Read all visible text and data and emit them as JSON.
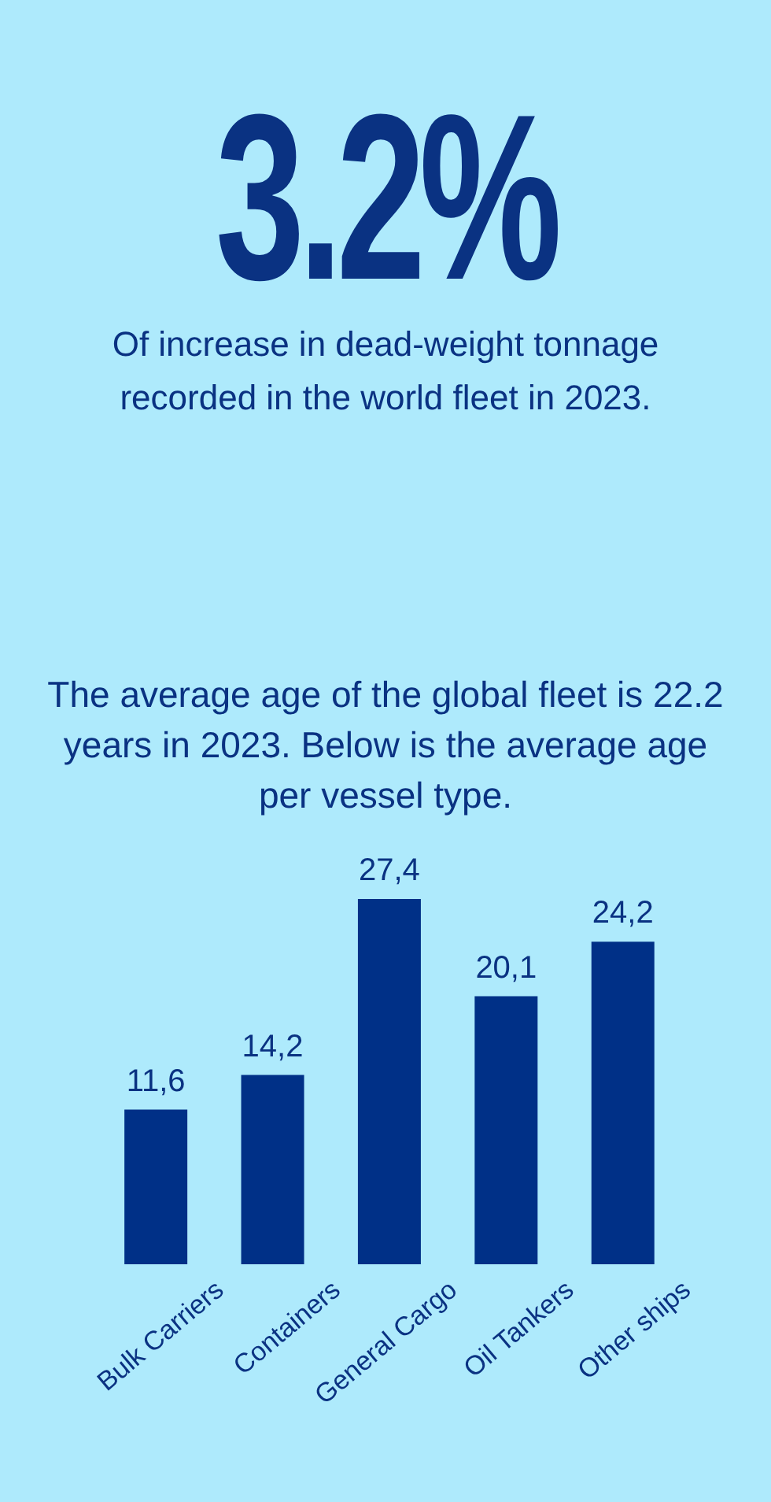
{
  "chart_data": {
    "type": "bar",
    "title": "3.2%",
    "subtitle": "Of increase in dead-weight tonnage recorded in the world fleet in 2023.",
    "annotations": [
      "The average age of the global fleet is 22.2 years in 2023. Below is the average age per vessel type."
    ],
    "categories": [
      "Bulk Carriers",
      "Containers",
      "General Cargo",
      "Oil Tankers",
      "Other ships"
    ],
    "values": [
      11.6,
      14.2,
      27.4,
      20.1,
      24.2
    ],
    "value_labels": [
      "11,6",
      "14,2",
      "27,4",
      "20,1",
      "24,2"
    ],
    "color": "#003087",
    "grid": false,
    "legend": false
  }
}
